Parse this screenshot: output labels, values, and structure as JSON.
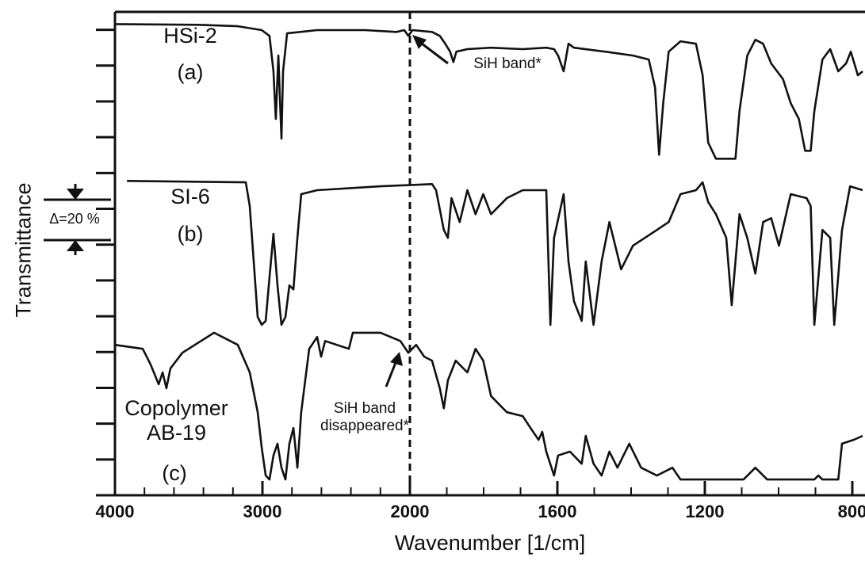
{
  "chart_data": {
    "type": "line",
    "x_label": "Wavenumber  [1/cm]",
    "y_label": "Transmittance",
    "xlim": [
      4000,
      772
    ],
    "xticks": [
      4000,
      3000,
      2000,
      1600,
      1200,
      800
    ],
    "ylim": [
      0,
      135
    ],
    "yticks": [
      0,
      10,
      20,
      30,
      40,
      50,
      60,
      70,
      80,
      90,
      100,
      110,
      120,
      130
    ],
    "vline_x": 2000,
    "scale_bar_label": "Δ=20 %",
    "annotations": [
      "SiH band*",
      "SiH band disappeared*"
    ],
    "series": [
      {
        "name": "HSi-2",
        "tag": "(a)",
        "color": "#111111",
        "x": [
          4000,
          3435,
          3167,
          3005,
          2952,
          2925,
          2909,
          2892,
          2882,
          2871,
          2860,
          2833,
          2629,
          2306,
          2091,
          2038,
          2011,
          1993,
          1940,
          1919,
          1904,
          1891,
          1882,
          1874,
          1844,
          1780,
          1694,
          1630,
          1609,
          1598,
          1583,
          1570,
          1555,
          1470,
          1395,
          1352,
          1335,
          1324,
          1313,
          1298,
          1266,
          1224,
          1206,
          1191,
          1170,
          1117,
          1106,
          1085,
          1063,
          1042,
          1020,
          988,
          967,
          945,
          928,
          913,
          903,
          881,
          860,
          838,
          817,
          804,
          785,
          772
        ],
        "values": [
          131.6,
          131.4,
          131.0,
          129.9,
          128.3,
          118.4,
          105.1,
          122.8,
          111.7,
          99.6,
          118.4,
          129.0,
          129.9,
          129.9,
          129.4,
          129.9,
          128.3,
          129.9,
          129.4,
          128.3,
          126.1,
          123.9,
          121.0,
          123.9,
          124.6,
          125.0,
          124.6,
          125.0,
          124.6,
          122.8,
          118.4,
          126.1,
          125.0,
          123.9,
          122.8,
          121.7,
          113.9,
          95.1,
          109.5,
          123.9,
          126.8,
          126.1,
          117.3,
          98.5,
          94.0,
          94.0,
          107.3,
          122.8,
          127.2,
          126.1,
          120.6,
          116.2,
          109.5,
          105.1,
          96.2,
          96.2,
          107.3,
          121.7,
          124.6,
          118.4,
          120.6,
          123.9,
          117.3,
          118.4
        ]
      },
      {
        "name": "SI-6",
        "tag": "(b)",
        "color": "#111111",
        "x": [
          3919,
          3113,
          3086,
          3059,
          3032,
          3005,
          2978,
          2952,
          2925,
          2898,
          2871,
          2844,
          2817,
          2790,
          2763,
          2737,
          2629,
          2199,
          1940,
          1929,
          1908,
          1897,
          1887,
          1865,
          1844,
          1822,
          1801,
          1780,
          1737,
          1694,
          1630,
          1619,
          1609,
          1583,
          1570,
          1555,
          1534,
          1523,
          1502,
          1480,
          1459,
          1427,
          1395,
          1330,
          1298,
          1266,
          1224,
          1206,
          1191,
          1170,
          1142,
          1127,
          1106,
          1085,
          1063,
          1042,
          1020,
          999,
          967,
          924,
          913,
          903,
          881,
          860,
          849,
          828,
          806,
          772
        ],
        "values": [
          87.8,
          87.4,
          80.8,
          65.3,
          49.8,
          47.6,
          48.7,
          60.8,
          73.0,
          58.6,
          47.6,
          49.8,
          58.6,
          57.5,
          71.9,
          84.1,
          85.2,
          86.3,
          86.9,
          85.2,
          74.1,
          71.9,
          83.0,
          76.3,
          85.2,
          78.5,
          84.1,
          78.5,
          83.0,
          85.2,
          85.2,
          47.6,
          71.9,
          84.1,
          65.3,
          54.2,
          48.7,
          65.3,
          47.6,
          65.3,
          76.3,
          63.1,
          69.7,
          74.1,
          76.3,
          84.1,
          85.2,
          87.4,
          81.9,
          78.5,
          71.9,
          53.1,
          78.5,
          71.9,
          61.9,
          76.3,
          77.4,
          69.7,
          84.1,
          83.0,
          80.8,
          47.6,
          74.1,
          71.9,
          47.6,
          74.1,
          86.3,
          85.2
        ]
      },
      {
        "name": "Copolymer AB-19",
        "tag": "(c)",
        "color": "#111111",
        "x": [
          4000,
          3812,
          3758,
          3704,
          3677,
          3651,
          3624,
          3543,
          3328,
          3167,
          3086,
          3032,
          3005,
          2978,
          2952,
          2925,
          2898,
          2871,
          2844,
          2817,
          2790,
          2763,
          2737,
          2683,
          2629,
          2602,
          2575,
          2414,
          2387,
          2199,
          2065,
          2011,
          1983,
          1961,
          1940,
          1919,
          1908,
          1897,
          1876,
          1844,
          1822,
          1801,
          1780,
          1737,
          1694,
          1673,
          1651,
          1641,
          1630,
          1609,
          1598,
          1566,
          1534,
          1523,
          1502,
          1480,
          1459,
          1437,
          1405,
          1373,
          1330,
          1288,
          1266,
          1095,
          1063,
          1031,
          903,
          892,
          881,
          838,
          828,
          796,
          772
        ],
        "values": [
          42.0,
          40.9,
          36.5,
          31.0,
          34.3,
          29.9,
          35.4,
          39.8,
          45.4,
          42.0,
          34.3,
          23.2,
          13.3,
          5.5,
          4.4,
          11.1,
          14.4,
          7.7,
          4.4,
          14.4,
          18.8,
          7.7,
          23.2,
          40.9,
          44.2,
          38.7,
          43.1,
          40.9,
          45.4,
          45.4,
          43.1,
          39.8,
          42.0,
          38.7,
          37.6,
          29.9,
          24.3,
          32.1,
          37.6,
          34.3,
          40.9,
          37.6,
          27.7,
          23.2,
          22.1,
          18.8,
          15.5,
          17.7,
          12.2,
          5.5,
          11.1,
          12.2,
          8.8,
          16.6,
          8.8,
          5.5,
          12.2,
          7.7,
          14.4,
          7.7,
          5.5,
          7.7,
          4.4,
          4.4,
          7.7,
          4.4,
          4.4,
          5.5,
          4.4,
          4.4,
          14.4,
          15.5,
          16.6
        ]
      }
    ]
  }
}
